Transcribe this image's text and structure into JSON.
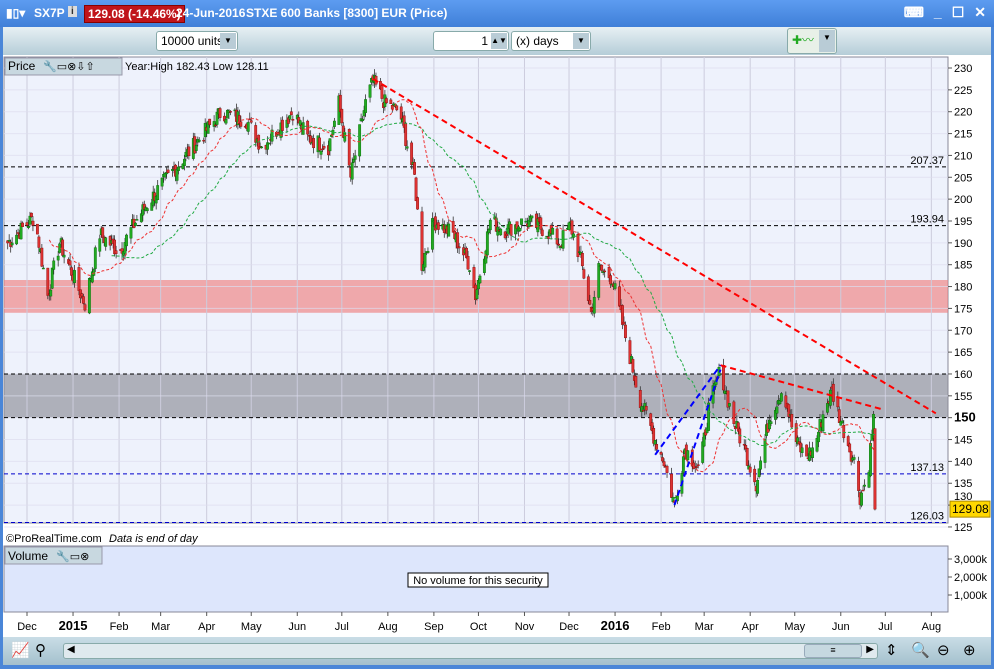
{
  "title": {
    "symbol": "SX7P",
    "last_price_change": "129.08 (-14.46%)",
    "date": "24-Jun-2016",
    "name": "STXE 600 Banks [8300] EUR (Price)"
  },
  "toolbar": {
    "units": "10000 units",
    "period_value": "1",
    "period_unit": "(x) days"
  },
  "price_panel": {
    "label": "Price",
    "stats": "Year:High 182.43 Low 128.11",
    "copyright": "©ProRealTime.com",
    "note": "Data is end of day",
    "last_label": "129.08",
    "y_ticks": [
      125,
      130,
      135,
      140,
      145,
      150,
      155,
      160,
      165,
      170,
      175,
      180,
      185,
      190,
      195,
      200,
      205,
      210,
      215,
      220,
      225,
      230
    ],
    "hlines": [
      {
        "value": 207.37,
        "label": "207.37",
        "color": "#000000"
      },
      {
        "value": 193.94,
        "label": "193.94",
        "color": "#000000"
      },
      {
        "value": 160,
        "label": "",
        "color": "#000000"
      },
      {
        "value": 150,
        "label": "",
        "color": "#000000"
      },
      {
        "value": 137.13,
        "label": "137.13",
        "color": "#0000cc"
      },
      {
        "value": 126.03,
        "label": "126.03",
        "color": "#0000cc"
      }
    ],
    "zones": [
      {
        "from": 174,
        "to": 181.5,
        "color": "#f08080"
      },
      {
        "from": 150,
        "to": 160,
        "color": "#8c8c96"
      }
    ],
    "trendlines": [
      {
        "from": [
          "2015-07-22",
          227.5
        ],
        "to": [
          "2016-08-04",
          151
        ],
        "color": "#ff0000"
      },
      {
        "from": [
          "2016-03-12",
          162
        ],
        "to": [
          "2016-06-28",
          152
        ],
        "color": "#ff0000"
      },
      {
        "from": [
          "2016-01-28",
          141.5
        ],
        "to": [
          "2016-03-12",
          162
        ],
        "color": "#0000ff"
      },
      {
        "from": [
          "2016-02-10",
          130
        ],
        "to": [
          "2016-03-12",
          161
        ],
        "color": "#0000ff"
      }
    ],
    "closes": [
      [
        "2014-11-18",
        190
      ],
      [
        "2014-12-06",
        196
      ],
      [
        "2014-12-15",
        178
      ],
      [
        "2014-12-23",
        190
      ],
      [
        "2015-01-09",
        176
      ],
      [
        "2015-01-19",
        192
      ],
      [
        "2015-02-01",
        188
      ],
      [
        "2015-02-14",
        196
      ],
      [
        "2015-03-01",
        203
      ],
      [
        "2015-03-18",
        210
      ],
      [
        "2015-04-11",
        220
      ],
      [
        "2015-04-28",
        218
      ],
      [
        "2015-05-08",
        212
      ],
      [
        "2015-05-29",
        220
      ],
      [
        "2015-06-08",
        214
      ],
      [
        "2015-06-22",
        212
      ],
      [
        "2015-06-29",
        222
      ],
      [
        "2015-07-07",
        205
      ],
      [
        "2015-07-17",
        222
      ],
      [
        "2015-07-22",
        227
      ],
      [
        "2015-07-30",
        222
      ],
      [
        "2015-08-09",
        220
      ],
      [
        "2015-08-19",
        205
      ],
      [
        "2015-08-24",
        185
      ],
      [
        "2015-09-01",
        195
      ],
      [
        "2015-09-14",
        192
      ],
      [
        "2015-09-25",
        185
      ],
      [
        "2015-09-29",
        178
      ],
      [
        "2015-10-09",
        195
      ],
      [
        "2015-10-19",
        193
      ],
      [
        "2015-11-02",
        195
      ],
      [
        "2015-11-15",
        193
      ],
      [
        "2015-11-25",
        190
      ],
      [
        "2015-12-02",
        194
      ],
      [
        "2015-12-09",
        186
      ],
      [
        "2015-12-16",
        174
      ],
      [
        "2015-12-21",
        184
      ],
      [
        "2015-12-30",
        182
      ],
      [
        "2016-01-07",
        170
      ],
      [
        "2016-01-17",
        155
      ],
      [
        "2016-01-28",
        145
      ],
      [
        "2016-02-03",
        140
      ],
      [
        "2016-02-10",
        130
      ],
      [
        "2016-02-17",
        143
      ],
      [
        "2016-02-27",
        138
      ],
      [
        "2016-03-04",
        152
      ],
      [
        "2016-03-12",
        161
      ],
      [
        "2016-03-20",
        150
      ],
      [
        "2016-03-28",
        143
      ],
      [
        "2016-04-05",
        135
      ],
      [
        "2016-04-14",
        150
      ],
      [
        "2016-04-23",
        157
      ],
      [
        "2016-05-01",
        145
      ],
      [
        "2016-05-08",
        141
      ],
      [
        "2016-05-14",
        143
      ],
      [
        "2016-05-21",
        152
      ],
      [
        "2016-05-26",
        156
      ],
      [
        "2016-06-04",
        146
      ],
      [
        "2016-06-10",
        140
      ],
      [
        "2016-06-14",
        132
      ],
      [
        "2016-06-19",
        136
      ],
      [
        "2016-06-23",
        150
      ],
      [
        "2016-06-24",
        129.08
      ]
    ]
  },
  "volume_panel": {
    "label": "Volume",
    "message": "No volume for this security",
    "y_ticks": [
      "3,000k",
      "2,000k",
      "1,000k"
    ]
  },
  "x_axis": [
    {
      "label": "Dec",
      "date": "2014-12-01",
      "bold": false
    },
    {
      "label": "2015",
      "date": "2015-01-01",
      "bold": true
    },
    {
      "label": "Feb",
      "date": "2015-02-01"
    },
    {
      "label": "Mar",
      "date": "2015-03-01"
    },
    {
      "label": "Apr",
      "date": "2015-04-01"
    },
    {
      "label": "May",
      "date": "2015-05-01"
    },
    {
      "label": "Jun",
      "date": "2015-06-01"
    },
    {
      "label": "Jul",
      "date": "2015-07-01"
    },
    {
      "label": "Aug",
      "date": "2015-08-01"
    },
    {
      "label": "Sep",
      "date": "2015-09-01"
    },
    {
      "label": "Oct",
      "date": "2015-10-01"
    },
    {
      "label": "Nov",
      "date": "2015-11-01"
    },
    {
      "label": "Dec",
      "date": "2015-12-01"
    },
    {
      "label": "2016",
      "date": "2016-01-01",
      "bold": true
    },
    {
      "label": "Feb",
      "date": "2016-02-01"
    },
    {
      "label": "Mar",
      "date": "2016-03-01"
    },
    {
      "label": "Apr",
      "date": "2016-04-01"
    },
    {
      "label": "May",
      "date": "2016-05-01"
    },
    {
      "label": "Jun",
      "date": "2016-06-01"
    },
    {
      "label": "Jul",
      "date": "2016-07-01"
    },
    {
      "label": "Aug",
      "date": "2016-08-01"
    }
  ],
  "colors": {
    "up": "#22aa22",
    "down": "#dd3333",
    "panel_bg": "#eef2fc",
    "badge": "#c0141a"
  }
}
